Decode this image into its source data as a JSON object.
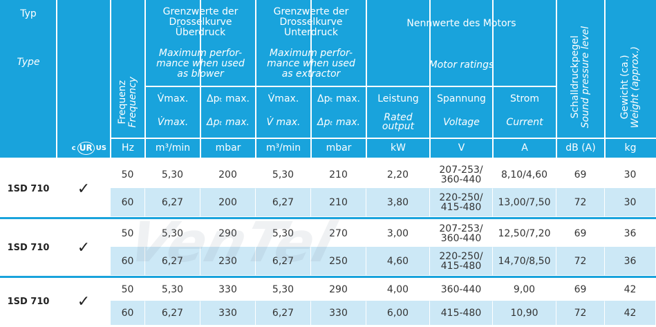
{
  "header": {
    "type": {
      "de": "Typ",
      "en": "Type"
    },
    "ul_mark": {
      "left": "c",
      "symbol": "UR",
      "right": "US"
    },
    "frequency": {
      "de": "Frequenz",
      "en": "Frequency"
    },
    "blower": {
      "de": "Grenzwerte der\nDrosselkurve\nÜberdruck",
      "en": "Maximum perfor-\nmance when used\nas blower"
    },
    "extractor": {
      "de": "Grenzwerte der\nDrosselkurve\nUnterdruck",
      "en": "Maximum perfor-\nmance when used\nas extractor"
    },
    "motor": {
      "de": "Nennwerte des Motors",
      "en": "Motor ratings"
    },
    "sound": {
      "de": "Schalldruckpegel",
      "en": "Sound pressure level"
    },
    "weight": {
      "de": "Gewicht (ca.)",
      "en": "Weight (approx.)"
    },
    "sub": [
      {
        "de": "V̇max.",
        "en": "V̇max."
      },
      {
        "de": "Δpₜ max.",
        "en": "Δpₜ max."
      },
      {
        "de": "V̇max.",
        "en": "V̇ max."
      },
      {
        "de": "Δpₜ max.",
        "en": "Δpₜ max."
      },
      {
        "de": "Leistung",
        "en": "Rated\noutput"
      },
      {
        "de": "Spannung",
        "en": "Voltage"
      },
      {
        "de": "Strom",
        "en": "Current"
      }
    ],
    "units": [
      "Hz",
      "m³/min",
      "mbar",
      "m³/min",
      "mbar",
      "kW",
      "V",
      "A",
      "dB (A)",
      "kg"
    ]
  },
  "watermark": "VenTel",
  "groups": [
    {
      "type": "1SD 710",
      "check": "✓",
      "rows": [
        [
          "50",
          "5,30",
          "200",
          "5,30",
          "210",
          "2,20",
          "207-253/\n360-440",
          "8,10/4,60",
          "69",
          "30"
        ],
        [
          "60",
          "6,27",
          "200",
          "6,27",
          "210",
          "3,80",
          "220-250/\n415-480",
          "13,00/7,50",
          "72",
          "30"
        ]
      ]
    },
    {
      "type": "1SD 710",
      "check": "✓",
      "rows": [
        [
          "50",
          "5,30",
          "290",
          "5,30",
          "270",
          "3,00",
          "207-253/\n360-440",
          "12,50/7,20",
          "69",
          "36"
        ],
        [
          "60",
          "6,27",
          "230",
          "6,27",
          "250",
          "4,60",
          "220-250/\n415-480",
          "14,70/8,50",
          "72",
          "36"
        ]
      ]
    },
    {
      "type": "1SD 710",
      "check": "✓",
      "rows": [
        [
          "50",
          "5,30",
          "330",
          "5,30",
          "290",
          "4,00",
          "360-440",
          "9,00",
          "69",
          "42"
        ],
        [
          "60",
          "6,27",
          "330",
          "6,27",
          "330",
          "6,00",
          "415-480",
          "10,90",
          "72",
          "42"
        ]
      ]
    }
  ]
}
